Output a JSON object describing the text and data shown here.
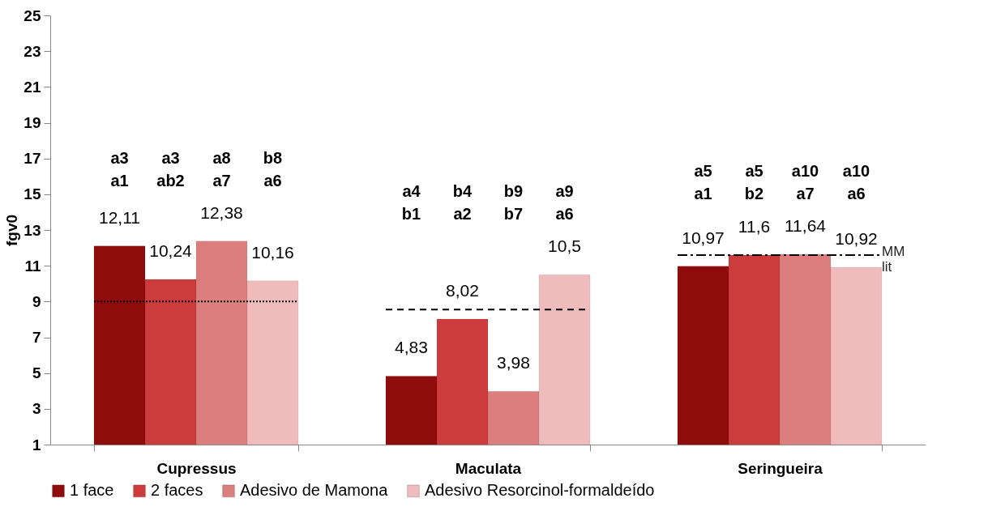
{
  "chart_data": {
    "type": "bar",
    "ylabel": "fgv0",
    "categories": [
      "Cupressus",
      "Maculata",
      "Seringueira"
    ],
    "series": [
      {
        "name": "1 face",
        "color": "#8e0c0c",
        "values": [
          12.11,
          4.83,
          10.97
        ],
        "value_labels": [
          "12,11",
          "4,83",
          "10,97"
        ]
      },
      {
        "name": "2 faces",
        "color": "#cc3c3c",
        "values": [
          10.24,
          8.02,
          11.6
        ],
        "value_labels": [
          "10,24",
          "8,02",
          "11,6"
        ]
      },
      {
        "name": "Adesivo de Mamona",
        "color": "#dc7e7e",
        "values": [
          12.38,
          3.98,
          11.64
        ],
        "value_labels": [
          "12,38",
          "3,98",
          "11,64"
        ]
      },
      {
        "name": "Adesivo Resorcinol-formaldeído",
        "color": "#eebcbc",
        "values": [
          10.16,
          10.5,
          10.92
        ],
        "value_labels": [
          "10,16",
          "10,5",
          "10,92"
        ]
      }
    ],
    "ylim": [
      1,
      25
    ],
    "yticks": [
      1,
      3,
      5,
      7,
      9,
      11,
      13,
      15,
      17,
      19,
      21,
      23,
      25
    ],
    "legend": "bottom",
    "ref_lines": [
      {
        "axis": "y",
        "value": 9,
        "color": "#000000",
        "line_style": "dotted"
      },
      {
        "axis": "y",
        "value": 8.55,
        "color": "#000000",
        "line_style": "dashed"
      },
      {
        "axis": "y",
        "value": 11.6,
        "color": "#000000",
        "line_style": "dashdot",
        "label": "MM\nlit"
      }
    ],
    "annotations": [
      "a3\na1",
      "a3\nab2",
      "a8\na7",
      "b8\na6",
      "a4\nb1",
      "b4\na2",
      "b9\nb7",
      "a9\na6",
      "a5\na1",
      "a5\nb2",
      "a10\na7",
      "a10\na6"
    ]
  }
}
